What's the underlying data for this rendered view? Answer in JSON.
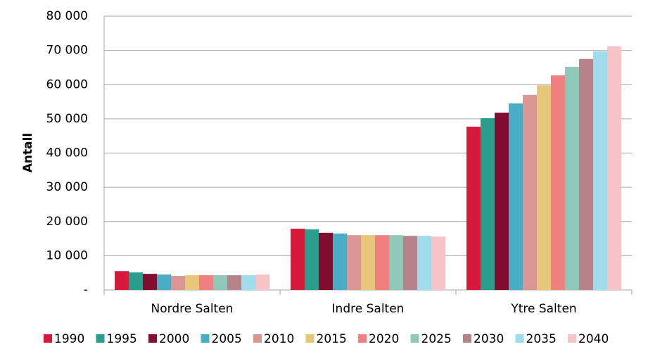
{
  "chart_data": {
    "type": "bar",
    "y_label": "Antall",
    "categories": [
      "Nordre Salten",
      "Indre Salten",
      "Ytre Salten"
    ],
    "series": [
      {
        "name": "1990",
        "color": "#d7193b",
        "values": [
          5500,
          17900,
          47700
        ]
      },
      {
        "name": "1995",
        "color": "#2a9d8c",
        "values": [
          5100,
          17700,
          50200
        ]
      },
      {
        "name": "2000",
        "color": "#800d2f",
        "values": [
          4700,
          16700,
          51800
        ]
      },
      {
        "name": "2005",
        "color": "#4bacc6",
        "values": [
          4500,
          16500,
          54500
        ]
      },
      {
        "name": "2010",
        "color": "#d99694",
        "values": [
          4100,
          16000,
          57000
        ]
      },
      {
        "name": "2015",
        "color": "#e6c77a",
        "values": [
          4300,
          16000,
          59800
        ]
      },
      {
        "name": "2020",
        "color": "#f08080",
        "values": [
          4300,
          16000,
          62700
        ]
      },
      {
        "name": "2025",
        "color": "#8fc7b9",
        "values": [
          4300,
          16000,
          65200
        ]
      },
      {
        "name": "2030",
        "color": "#b7838a",
        "values": [
          4300,
          15800,
          67500
        ]
      },
      {
        "name": "2035",
        "color": "#9fdcec",
        "values": [
          4300,
          15800,
          69700
        ]
      },
      {
        "name": "2040",
        "color": "#f7c3c6",
        "values": [
          4500,
          15600,
          71200
        ]
      }
    ],
    "ylim": [
      0,
      80000
    ],
    "yticks": [
      {
        "value": 0,
        "label": "-"
      },
      {
        "value": 10000,
        "label": "10 000"
      },
      {
        "value": 20000,
        "label": "20 000"
      },
      {
        "value": 30000,
        "label": "30 000"
      },
      {
        "value": 40000,
        "label": "40 000"
      },
      {
        "value": 50000,
        "label": "50 000"
      },
      {
        "value": 60000,
        "label": "60 000"
      },
      {
        "value": 70000,
        "label": "70 000"
      },
      {
        "value": 80000,
        "label": "80 000"
      }
    ],
    "grid": true,
    "legend": "bottom"
  }
}
